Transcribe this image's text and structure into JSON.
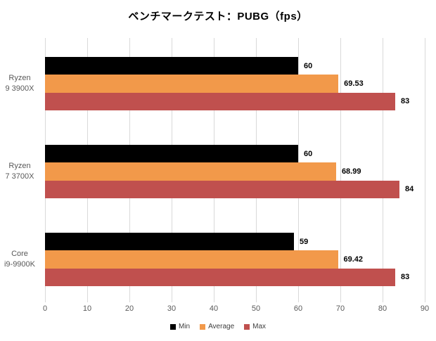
{
  "title": "ベンチマークテスト：PUBG（fps）",
  "chart_data": {
    "type": "bar",
    "orientation": "horizontal",
    "title": "ベンチマークテスト：PUBG（fps）",
    "categories": [
      "Ryzen 9 3900X",
      "Ryzen 7 3700X",
      "Core i9-9900K"
    ],
    "category_label_lines": [
      [
        "Ryzen",
        "9 3900X"
      ],
      [
        "Ryzen",
        "7 3700X"
      ],
      [
        "Core",
        "i9-9900K"
      ]
    ],
    "series": [
      {
        "name": "Min",
        "color": "#000000",
        "values": [
          60,
          60,
          59
        ],
        "labels": [
          "60",
          "60",
          "59"
        ]
      },
      {
        "name": "Average",
        "color": "#F2994A",
        "values": [
          69.53,
          68.99,
          69.42
        ],
        "labels": [
          "69.53",
          "68.99",
          "69.42"
        ]
      },
      {
        "name": "Max",
        "color": "#C0504E",
        "values": [
          83,
          84,
          83
        ],
        "labels": [
          "83",
          "84",
          "83"
        ]
      }
    ],
    "xlim": [
      0,
      90
    ],
    "x_ticks": [
      0,
      10,
      20,
      30,
      40,
      50,
      60,
      70,
      80,
      90
    ],
    "grid": true,
    "legend_position": "bottom",
    "xlabel": "",
    "ylabel": ""
  },
  "colors": {
    "grid": "#d9d9d9",
    "axis_text": "#595959",
    "category_text": "#595959",
    "value_label_text": "#000000",
    "title_text": "#000000",
    "background": "#ffffff"
  }
}
